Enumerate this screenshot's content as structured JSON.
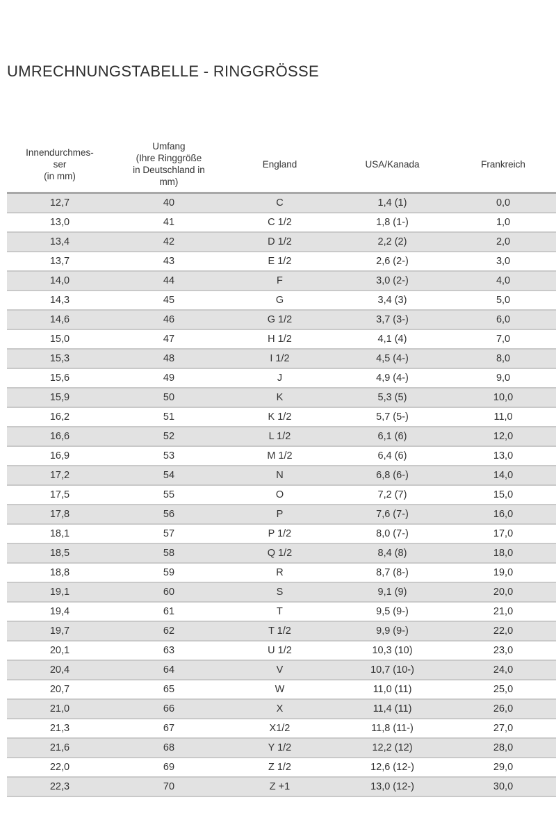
{
  "title": "UMRECHNUNGSTABELLE - RINGGRÖSSE",
  "headers": [
    "Innendurchmes-\nser\n(in mm)",
    "Umfang\n(Ihre Ringgröße\nin Deutschland in\nmm)",
    "England",
    "USA/Kanada",
    "Frankreich"
  ],
  "rows": [
    [
      "12,7",
      "40",
      "C",
      "1,4 (1)",
      "0,0"
    ],
    [
      "13,0",
      "41",
      "C 1/2",
      "1,8 (1-)",
      "1,0"
    ],
    [
      "13,4",
      "42",
      "D 1/2",
      "2,2 (2)",
      "2,0"
    ],
    [
      "13,7",
      "43",
      "E 1/2",
      "2,6 (2-)",
      "3,0"
    ],
    [
      "14,0",
      "44",
      "F",
      "3,0 (2-)",
      "4,0"
    ],
    [
      "14,3",
      "45",
      "G",
      "3,4 (3)",
      "5,0"
    ],
    [
      "14,6",
      "46",
      "G 1/2",
      "3,7 (3-)",
      "6,0"
    ],
    [
      "15,0",
      "47",
      "H 1/2",
      "4,1 (4)",
      "7,0"
    ],
    [
      "15,3",
      "48",
      "I 1/2",
      "4,5 (4-)",
      "8,0"
    ],
    [
      "15,6",
      "49",
      "J",
      "4,9 (4-)",
      "9,0"
    ],
    [
      "15,9",
      "50",
      "K",
      "5,3 (5)",
      "10,0"
    ],
    [
      "16,2",
      "51",
      "K 1/2",
      "5,7 (5-)",
      "11,0"
    ],
    [
      "16,6",
      "52",
      "L 1/2",
      "6,1 (6)",
      "12,0"
    ],
    [
      "16,9",
      "53",
      "M 1/2",
      "6,4 (6)",
      "13,0"
    ],
    [
      "17,2",
      "54",
      "N",
      "6,8 (6-)",
      "14,0"
    ],
    [
      "17,5",
      "55",
      "O",
      "7,2 (7)",
      "15,0"
    ],
    [
      "17,8",
      "56",
      "P",
      "7,6 (7-)",
      "16,0"
    ],
    [
      "18,1",
      "57",
      "P 1/2",
      "8,0 (7-)",
      "17,0"
    ],
    [
      "18,5",
      "58",
      "Q 1/2",
      "8,4 (8)",
      "18,0"
    ],
    [
      "18,8",
      "59",
      "R",
      "8,7 (8-)",
      "19,0"
    ],
    [
      "19,1",
      "60",
      "S",
      "9,1 (9)",
      "20,0"
    ],
    [
      "19,4",
      "61",
      "T",
      "9,5 (9-)",
      "21,0"
    ],
    [
      "19,7",
      "62",
      "T 1/2",
      "9,9 (9-)",
      "22,0"
    ],
    [
      "20,1",
      "63",
      "U 1/2",
      "10,3 (10)",
      "23,0"
    ],
    [
      "20,4",
      "64",
      "V",
      "10,7 (10-)",
      "24,0"
    ],
    [
      "20,7",
      "65",
      "W",
      "11,0 (11)",
      "25,0"
    ],
    [
      "21,0",
      "66",
      "X",
      "11,4 (11)",
      "26,0"
    ],
    [
      "21,3",
      "67",
      "X1/2",
      "11,8 (11-)",
      "27,0"
    ],
    [
      "21,6",
      "68",
      "Y 1/2",
      "12,2 (12)",
      "28,0"
    ],
    [
      "22,0",
      "69",
      "Z 1/2",
      "12,6 (12-)",
      "29,0"
    ],
    [
      "22,3",
      "70",
      "Z +1",
      "13,0 (12-)",
      "30,0"
    ]
  ]
}
